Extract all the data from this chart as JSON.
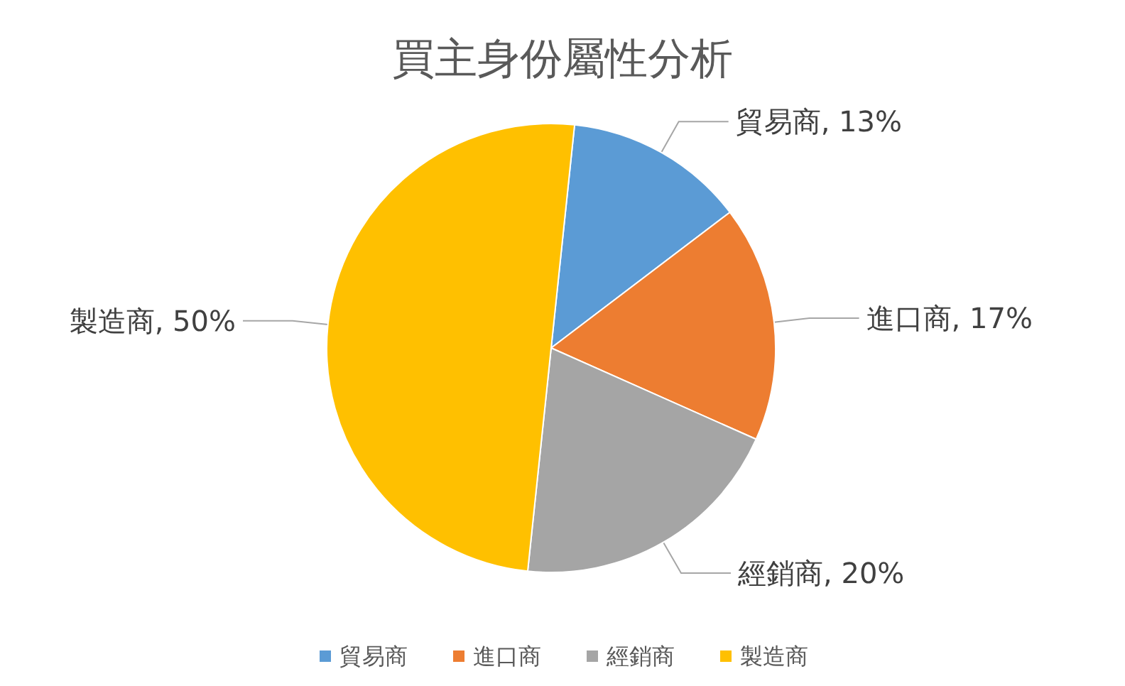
{
  "chart_data": {
    "type": "pie",
    "title": "買主身份屬性分析",
    "categories": [
      "貿易商",
      "進口商",
      "經銷商",
      "製造商"
    ],
    "values": [
      13,
      17,
      20,
      50
    ],
    "value_labels": [
      "貿易商, 13%",
      "進口商, 17%",
      "經銷商, 20%",
      "製造商, 50%"
    ],
    "colors": [
      "#5b9bd5",
      "#ed7d31",
      "#a5a5a5",
      "#ffc000"
    ],
    "legend": "bottom"
  }
}
